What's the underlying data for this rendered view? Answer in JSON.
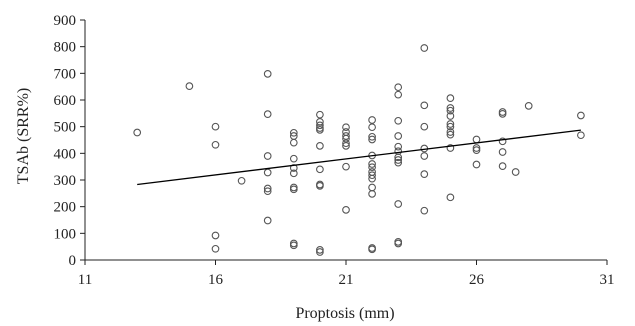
{
  "chart_data": {
    "type": "scatter",
    "title": "",
    "xlabel": "Proptosis (mm)",
    "ylabel": "TSAb (SRR%)",
    "xlim": [
      11,
      31
    ],
    "ylim": [
      0,
      900
    ],
    "xticks": [
      11,
      16,
      21,
      26,
      31
    ],
    "yticks": [
      0,
      100,
      200,
      300,
      400,
      500,
      600,
      700,
      800,
      900
    ],
    "grid": false,
    "legend": "none",
    "series": [
      {
        "points": [
          [
            13,
            478
          ],
          [
            15,
            652
          ],
          [
            16,
            500
          ],
          [
            16,
            432
          ],
          [
            16,
            92
          ],
          [
            16,
            42
          ],
          [
            17,
            297
          ],
          [
            18,
            698
          ],
          [
            18,
            547
          ],
          [
            18,
            390
          ],
          [
            18,
            328
          ],
          [
            18,
            268
          ],
          [
            18,
            258
          ],
          [
            18,
            148
          ],
          [
            19,
            477
          ],
          [
            19,
            465
          ],
          [
            19,
            440
          ],
          [
            19,
            380
          ],
          [
            19,
            345
          ],
          [
            19,
            325
          ],
          [
            19,
            272
          ],
          [
            19,
            265
          ],
          [
            19,
            62
          ],
          [
            19,
            55
          ],
          [
            20,
            545
          ],
          [
            20,
            518
          ],
          [
            20,
            505
          ],
          [
            20,
            495
          ],
          [
            20,
            488
          ],
          [
            20,
            428
          ],
          [
            20,
            340
          ],
          [
            20,
            283
          ],
          [
            20,
            278
          ],
          [
            20,
            38
          ],
          [
            20,
            30
          ],
          [
            21,
            498
          ],
          [
            21,
            480
          ],
          [
            21,
            465
          ],
          [
            21,
            455
          ],
          [
            21,
            438
          ],
          [
            21,
            428
          ],
          [
            21,
            350
          ],
          [
            21,
            188
          ],
          [
            22,
            525
          ],
          [
            22,
            498
          ],
          [
            22,
            462
          ],
          [
            22,
            452
          ],
          [
            22,
            392
          ],
          [
            22,
            360
          ],
          [
            22,
            348
          ],
          [
            22,
            330
          ],
          [
            22,
            318
          ],
          [
            22,
            305
          ],
          [
            22,
            272
          ],
          [
            22,
            248
          ],
          [
            22,
            45
          ],
          [
            22,
            40
          ],
          [
            23,
            648
          ],
          [
            23,
            620
          ],
          [
            23,
            522
          ],
          [
            23,
            465
          ],
          [
            23,
            425
          ],
          [
            23,
            408
          ],
          [
            23,
            385
          ],
          [
            23,
            375
          ],
          [
            23,
            365
          ],
          [
            23,
            210
          ],
          [
            23,
            68
          ],
          [
            23,
            62
          ],
          [
            24,
            795
          ],
          [
            24,
            580
          ],
          [
            24,
            500
          ],
          [
            24,
            418
          ],
          [
            24,
            390
          ],
          [
            24,
            322
          ],
          [
            24,
            185
          ],
          [
            25,
            607
          ],
          [
            25,
            570
          ],
          [
            25,
            560
          ],
          [
            25,
            540
          ],
          [
            25,
            510
          ],
          [
            25,
            500
          ],
          [
            25,
            480
          ],
          [
            25,
            470
          ],
          [
            25,
            420
          ],
          [
            25,
            235
          ],
          [
            26,
            452
          ],
          [
            26,
            420
          ],
          [
            26,
            412
          ],
          [
            26,
            358
          ],
          [
            27,
            555
          ],
          [
            27,
            548
          ],
          [
            27,
            445
          ],
          [
            27,
            405
          ],
          [
            27,
            352
          ],
          [
            27.5,
            330
          ],
          [
            28,
            578
          ],
          [
            30,
            542
          ],
          [
            30,
            468
          ]
        ]
      }
    ],
    "trendline": {
      "x": [
        13,
        30
      ],
      "y": [
        283,
        487
      ]
    }
  }
}
